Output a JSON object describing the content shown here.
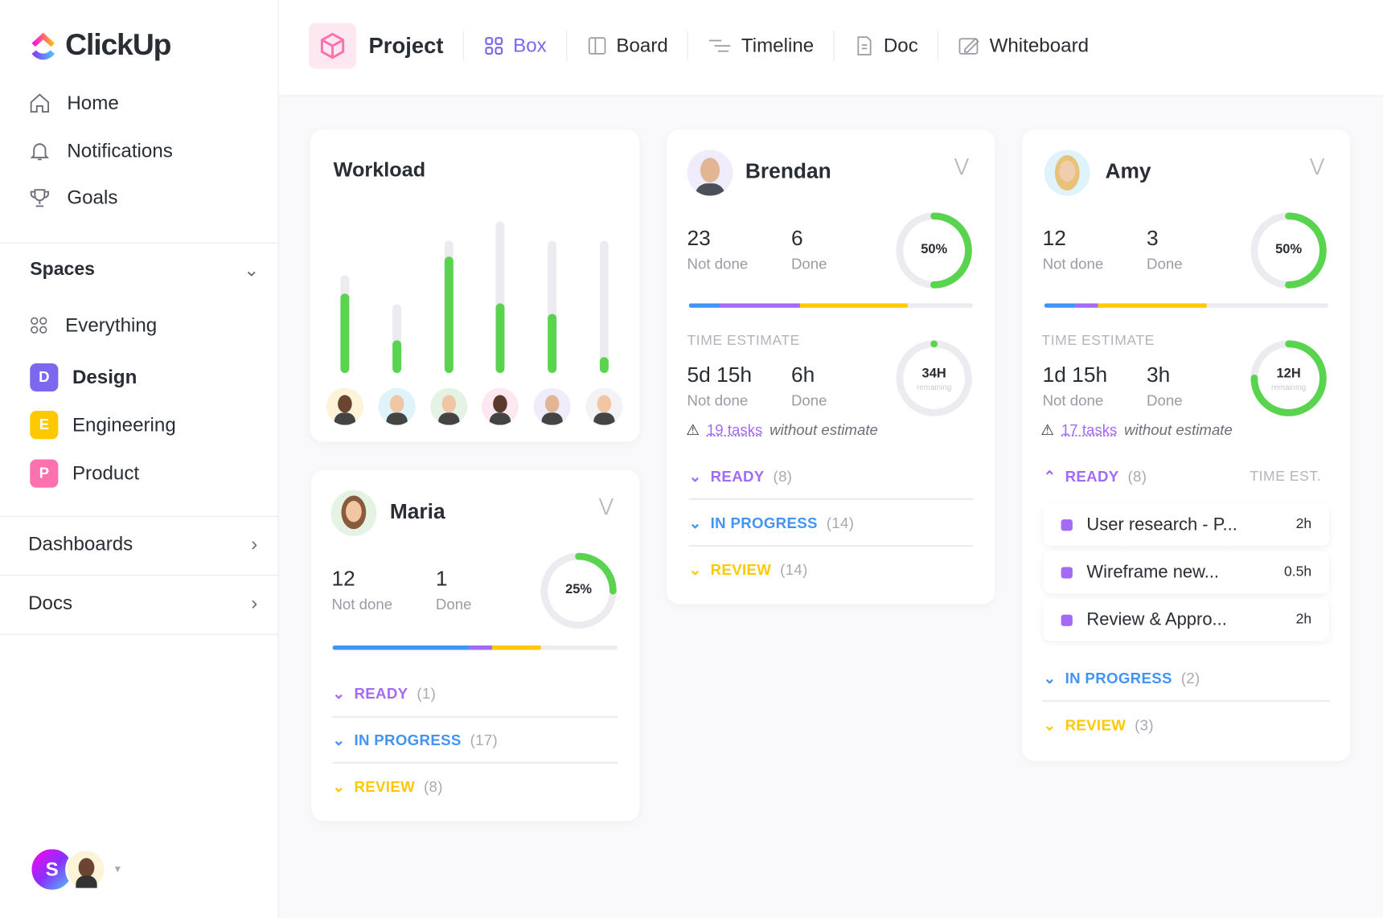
{
  "app": {
    "name": "ClickUp"
  },
  "sidebar": {
    "nav": [
      {
        "label": "Home",
        "icon": "home-icon"
      },
      {
        "label": "Notifications",
        "icon": "bell-icon"
      },
      {
        "label": "Goals",
        "icon": "trophy-icon"
      }
    ],
    "spaces_label": "Spaces",
    "everything": "Everything",
    "spaces": [
      {
        "letter": "D",
        "label": "Design",
        "color": "#7b68ee",
        "active": true
      },
      {
        "letter": "E",
        "label": "Engineering",
        "color": "#ffc800"
      },
      {
        "letter": "P",
        "label": "Product",
        "color": "#fd71af"
      }
    ],
    "dashboards": "Dashboards",
    "docs": "Docs",
    "user_initial": "S"
  },
  "header": {
    "project": "Project",
    "tabs": [
      {
        "label": "Box",
        "icon": "grid-icon",
        "active": true
      },
      {
        "label": "Board",
        "icon": "board-icon"
      },
      {
        "label": "Timeline",
        "icon": "timeline-icon"
      },
      {
        "label": "Doc",
        "icon": "doc-icon"
      },
      {
        "label": "Whiteboard",
        "icon": "whiteboard-icon"
      }
    ]
  },
  "colors": {
    "accent": "#7b68ee",
    "green": "#5ad44f",
    "blue": "#4194f6",
    "purple": "#a36bf5",
    "yellow": "#ffc800"
  },
  "workload": {
    "title": "Workload",
    "people": [
      {
        "capacity": 0.74,
        "load": 0.6
      },
      {
        "capacity": 0.52,
        "load": 0.25
      },
      {
        "capacity": 1.0,
        "load": 0.88
      },
      {
        "capacity": 1.15,
        "load": 0.53
      },
      {
        "capacity": 1.0,
        "load": 0.45
      },
      {
        "capacity": 1.0,
        "load": 0.12
      }
    ]
  },
  "cards": {
    "brendan": {
      "name": "Brendan",
      "not_done": "23",
      "not_done_label": "Not done",
      "done": "6",
      "done_label": "Done",
      "percent": "50%",
      "progress": 0.5,
      "bar": [
        0.11,
        0.28,
        0.38
      ],
      "time_label": "TIME ESTIMATE",
      "time_not_done": "5d 15h",
      "time_done": "6h",
      "remaining": "34H",
      "remaining_label": "remaining",
      "remaining_frac": 0,
      "warn_link": "19 tasks",
      "warn_text": "without estimate",
      "statuses": [
        {
          "label": "READY",
          "count": "(8)",
          "color": "#a36bf5"
        },
        {
          "label": "IN PROGRESS",
          "count": "(14)",
          "color": "#4194f6"
        },
        {
          "label": "REVIEW",
          "count": "(14)",
          "color": "#ffc800"
        }
      ]
    },
    "amy": {
      "name": "Amy",
      "not_done": "12",
      "not_done_label": "Not done",
      "done": "3",
      "done_label": "Done",
      "percent": "50%",
      "progress": 0.5,
      "bar": [
        0.11,
        0.08,
        0.38
      ],
      "time_label": "TIME ESTIMATE",
      "time_not_done": "1d 15h",
      "time_done": "3h",
      "remaining": "12H",
      "remaining_label": "remaining",
      "remaining_frac": 0.75,
      "warn_link": "17 tasks",
      "warn_text": "without estimate",
      "ready": {
        "label": "READY",
        "count": "(8)",
        "time_header": "TIME EST."
      },
      "tasks": [
        {
          "name": "User research - P...",
          "time": "2h"
        },
        {
          "name": "Wireframe new...",
          "time": "0.5h"
        },
        {
          "name": "Review & Appro...",
          "time": "2h"
        }
      ],
      "statuses": [
        {
          "label": "IN PROGRESS",
          "count": "(2)",
          "color": "#4194f6"
        },
        {
          "label": "REVIEW",
          "count": "(3)",
          "color": "#ffc800"
        }
      ]
    },
    "maria": {
      "name": "Maria",
      "not_done": "12",
      "not_done_label": "Not done",
      "done": "1",
      "done_label": "Done",
      "percent": "25%",
      "progress": 0.25,
      "bar": [
        0.48,
        0.08,
        0.17
      ],
      "statuses": [
        {
          "label": "READY",
          "count": "(1)",
          "color": "#a36bf5"
        },
        {
          "label": "IN PROGRESS",
          "count": "(17)",
          "color": "#4194f6"
        },
        {
          "label": "REVIEW",
          "count": "(8)",
          "color": "#ffc800"
        }
      ]
    }
  }
}
